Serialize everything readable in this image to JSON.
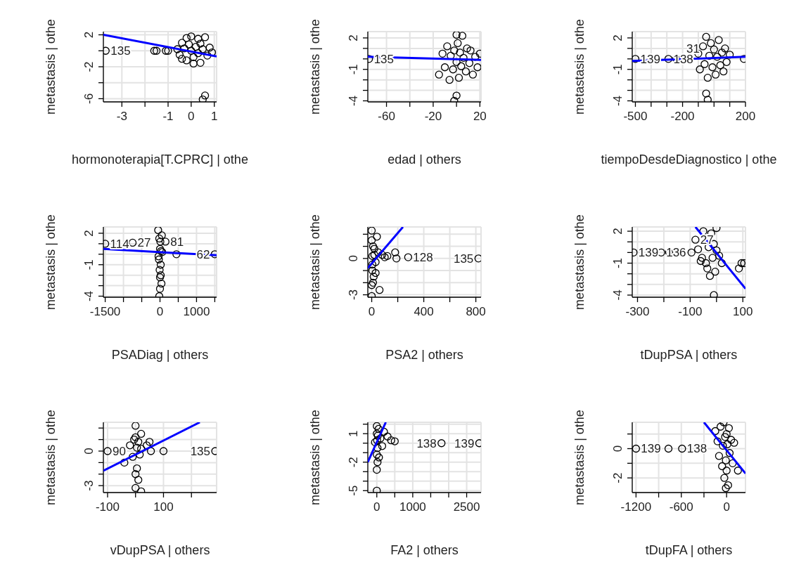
{
  "chart_data": [
    {
      "type": "scatter",
      "xlabel": "hormonoterapia[T.CPRC] | othe",
      "ylabel": "metastasis  | othe",
      "xlim": [
        -3.8,
        1.1
      ],
      "ylim": [
        -6.4,
        2.4
      ],
      "xticks": [
        -3,
        {
          "value": -2,
          "label": null
        },
        -1,
        0,
        1
      ],
      "yticks": [
        2,
        {
          "value": 0,
          "label": null
        },
        -2,
        {
          "value": -4,
          "label": null
        },
        -6
      ],
      "grid": true,
      "series": [
        {
          "color": "#000000",
          "marker": "circle",
          "x": [
            -0.6,
            -0.5,
            -0.4,
            -0.3,
            -0.2,
            -0.1,
            0,
            0,
            0.1,
            0.2,
            0.3,
            0.3,
            0.4,
            0.5,
            0.6,
            0.7,
            0.8,
            0.9,
            -0.2,
            0.1,
            -0.4,
            0.4,
            -3.7,
            -1.6,
            -1.5,
            -1.1,
            -1.0,
            0.5,
            0.6
          ],
          "values": [
            0.2,
            -0.5,
            1.0,
            0.3,
            -1.2,
            0.8,
            1.8,
            0,
            -0.8,
            0.5,
            1.5,
            -0.3,
            -1.5,
            0.2,
            1.7,
            -0.6,
            0.4,
            -0.2,
            1.6,
            -1.6,
            -1.0,
            0.9,
            0,
            0,
            0,
            0,
            0,
            -6.1,
            -5.6
          ]
        },
        {
          "type": "line",
          "color": "#0000ff",
          "x": [
            -3.8,
            1.1
          ],
          "values": [
            2.0,
            -0.7
          ]
        }
      ],
      "annotations": [
        {
          "text": "135",
          "x": -3.7,
          "y": 0
        }
      ]
    },
    {
      "type": "scatter",
      "xlabel": "edad | others",
      "ylabel": "metastasis  | othe",
      "xlim": [
        -76,
        21
      ],
      "ylim": [
        -4.1,
        2.6
      ],
      "xticks": [
        -60,
        {
          "value": -40,
          "label": null
        },
        -20,
        {
          "value": 0,
          "label": null
        },
        20
      ],
      "yticks": [
        2,
        {
          "value": 1,
          "label": null
        },
        {
          "value": 0,
          "label": null
        },
        -1,
        {
          "value": -2,
          "label": null
        },
        {
          "value": -3,
          "label": null
        },
        -4
      ],
      "grid": true,
      "series": [
        {
          "color": "#000000",
          "marker": "circle",
          "x": [
            -75,
            -15,
            -12,
            -10,
            -8,
            -6,
            -5,
            -3,
            -2,
            0,
            0,
            1,
            2,
            3,
            4,
            5,
            6,
            8,
            9,
            11,
            12,
            14,
            16,
            18,
            20,
            0,
            -2
          ],
          "values": [
            0,
            -1.5,
            0.5,
            -0.8,
            1.2,
            -2,
            0.3,
            -1,
            0.8,
            2.3,
            -0.3,
            1.5,
            -1.8,
            0.6,
            -0.7,
            2.2,
            0.1,
            -1.2,
            1.0,
            -0.4,
            0.8,
            -1.5,
            0.2,
            -0.8,
            0.5,
            -3.5,
            -4
          ]
        },
        {
          "type": "line",
          "color": "#0000ff",
          "x": [
            -76,
            21
          ],
          "values": [
            0.2,
            -0.1
          ]
        }
      ],
      "annotations": [
        {
          "text": "135",
          "x": -75,
          "y": 0
        }
      ]
    },
    {
      "type": "scatter",
      "xlabel": "tiempoDesdeDiagnostico | othe",
      "ylabel": "metastasis  | othe",
      "xlim": [
        -520,
        200
      ],
      "ylim": [
        -4.1,
        2.6
      ],
      "xticks": [
        -500,
        {
          "value": -400,
          "label": null
        },
        {
          "value": -300,
          "label": null
        },
        -200,
        {
          "value": -100,
          "label": null
        },
        {
          "value": 0,
          "label": null
        },
        {
          "value": 100,
          "label": null
        },
        200
      ],
      "yticks": [
        2,
        {
          "value": 1,
          "label": null
        },
        {
          "value": 0,
          "label": null
        },
        -1,
        {
          "value": -2,
          "label": null
        },
        {
          "value": -3,
          "label": null
        },
        -4
      ],
      "grid": true,
      "series": [
        {
          "color": "#000000",
          "marker": "circle",
          "x": [
            -500,
            -290,
            -240,
            -100,
            -90,
            -70,
            -60,
            -50,
            -40,
            -30,
            -20,
            -10,
            0,
            10,
            20,
            30,
            40,
            50,
            60,
            70,
            80,
            100,
            190,
            -50,
            -40
          ],
          "values": [
            0,
            0,
            0,
            0.5,
            -1,
            1.2,
            -0.5,
            2.1,
            -1.8,
            0.3,
            1.5,
            -0.8,
            0.9,
            -1.5,
            0.2,
            1.8,
            -0.6,
            0.6,
            -1.2,
            1.0,
            -0.3,
            0.4,
            0,
            -3.3,
            -3.9
          ]
        },
        {
          "type": "line",
          "color": "#0000ff",
          "x": [
            -520,
            200
          ],
          "values": [
            -0.2,
            0.2
          ]
        }
      ],
      "annotations": [
        {
          "text": "139",
          "x": -500,
          "y": 0
        },
        {
          "text": "138",
          "x": -290,
          "y": 0
        },
        {
          "text": "31",
          "x": -60,
          "y": 1
        }
      ]
    },
    {
      "type": "scatter",
      "xlabel": "PSADiag | others",
      "ylabel": "metastasis  | othe",
      "xlim": [
        -1550,
        1550
      ],
      "ylim": [
        -4.1,
        2.6
      ],
      "xticks": [
        -1500,
        {
          "value": -1000,
          "label": null
        },
        {
          "value": -500,
          "label": null
        },
        0,
        {
          "value": 500,
          "label": null
        },
        1000,
        {
          "value": 1500,
          "label": null
        }
      ],
      "yticks": [
        2,
        {
          "value": 1,
          "label": null
        },
        {
          "value": 0,
          "label": null
        },
        -1,
        {
          "value": -2,
          "label": null
        },
        {
          "value": -3,
          "label": null
        },
        -4
      ],
      "grid": true,
      "series": [
        {
          "color": "#000000",
          "marker": "circle",
          "x": [
            -1500,
            -750,
            150,
            -50,
            -30,
            -20,
            -10,
            0,
            0,
            10,
            20,
            30,
            40,
            50,
            0,
            -20,
            60,
            450,
            1500,
            -40,
            20
          ],
          "values": [
            1,
            1.1,
            1.2,
            2.3,
            -0.5,
            1.5,
            -1.5,
            0.5,
            -2.2,
            1.2,
            -1,
            0.3,
            -2.8,
            1.8,
            -3.3,
            -4,
            0.2,
            0,
            0,
            -0.2,
            -2
          ]
        },
        {
          "type": "line",
          "color": "#0000ff",
          "x": [
            -1550,
            1550
          ],
          "values": [
            0.5,
            -0.1
          ]
        }
      ],
      "annotations": [
        {
          "text": "114",
          "x": -1500,
          "y": 1
        },
        {
          "text": "27",
          "x": -750,
          "y": 1.1
        },
        {
          "text": "81",
          "x": 150,
          "y": 1.2
        },
        {
          "text": "62",
          "x": 1500,
          "y": 0
        }
      ]
    },
    {
      "type": "scatter",
      "xlabel": "PSA2 | others",
      "ylabel": "metastasis  | othe",
      "xlim": [
        -30,
        840
      ],
      "ylim": [
        -3.2,
        2.6
      ],
      "xticks": [
        0,
        {
          "value": 200,
          "label": null
        },
        400,
        {
          "value": 600,
          "label": null
        },
        800
      ],
      "yticks": [
        {
          "value": 2,
          "label": null
        },
        {
          "value": 1,
          "label": null
        },
        0,
        {
          "value": -1,
          "label": null
        },
        {
          "value": -2,
          "label": null
        },
        -3
      ],
      "grid": true,
      "series": [
        {
          "color": "#000000",
          "marker": "circle",
          "x": [
            0,
            0,
            5,
            10,
            15,
            20,
            0,
            5,
            10,
            20,
            30,
            40,
            50,
            60,
            80,
            100,
            120,
            180,
            190,
            280,
            820,
            0,
            30,
            5
          ],
          "values": [
            2.3,
            1.5,
            -0.5,
            1.0,
            -1.5,
            0.3,
            -2.2,
            -1,
            -2,
            0.8,
            -0.3,
            1.8,
            0.5,
            -2.6,
            0.3,
            0.1,
            0.2,
            0.5,
            0,
            0.1,
            0,
            -3.1,
            -1.2,
            0.2
          ]
        },
        {
          "type": "line",
          "color": "#0000ff",
          "x": [
            -30,
            240
          ],
          "values": [
            -0.8,
            2.6
          ]
        }
      ],
      "annotations": [
        {
          "text": "128",
          "x": 280,
          "y": 0.1
        },
        {
          "text": "135",
          "x": 820,
          "y": 0
        }
      ]
    },
    {
      "type": "scatter",
      "xlabel": "tDupPSA | others",
      "ylabel": "metastasis  | othe",
      "xlim": [
        -320,
        110
      ],
      "ylim": [
        -4.2,
        2.4
      ],
      "xticks": [
        -300,
        {
          "value": -200,
          "label": null
        },
        -100,
        {
          "value": 0,
          "label": null
        },
        100
      ],
      "yticks": [
        2,
        {
          "value": 1,
          "label": null
        },
        {
          "value": 0,
          "label": null
        },
        -1,
        {
          "value": -2,
          "label": null
        },
        {
          "value": -3,
          "label": null
        },
        -4
      ],
      "grid": true,
      "series": [
        {
          "color": "#000000",
          "marker": "circle",
          "x": [
            -315,
            -210,
            -180,
            -95,
            -80,
            -70,
            -60,
            -50,
            -40,
            -35,
            -30,
            -25,
            -20,
            -15,
            -10,
            -5,
            0,
            0,
            -10,
            10,
            20,
            85,
            95,
            105,
            -55
          ],
          "values": [
            0,
            0,
            0,
            0,
            1.2,
            0.3,
            -0.8,
            2,
            -1.0,
            -1.5,
            0.5,
            -2.2,
            1.8,
            -0.5,
            0.8,
            -1.8,
            0.2,
            2.3,
            -4,
            -0.3,
            -1,
            -1.5,
            -1,
            -1,
            -0.5
          ]
        },
        {
          "type": "line",
          "color": "#0000ff",
          "x": [
            -80,
            110
          ],
          "values": [
            2.4,
            -3.4
          ]
        }
      ],
      "annotations": [
        {
          "text": "139",
          "x": -315,
          "y": 0
        },
        {
          "text": "136",
          "x": -210,
          "y": 0
        },
        {
          "text": "27",
          "x": -80,
          "y": 1.2
        }
      ]
    },
    {
      "type": "scatter",
      "xlabel": "vDupPSA | others",
      "ylabel": "metastasis  | othe",
      "xlim": [
        -115,
        290
      ],
      "ylim": [
        -3.6,
        2.5
      ],
      "xticks": [
        -100,
        {
          "value": 0,
          "label": null
        },
        100,
        {
          "value": 200,
          "label": null
        }
      ],
      "yticks": [
        {
          "value": 2,
          "label": null
        },
        {
          "value": 1,
          "label": null
        },
        0,
        {
          "value": -1,
          "label": null
        },
        {
          "value": -2,
          "label": null
        },
        -3
      ],
      "grid": true,
      "series": [
        {
          "color": "#000000",
          "marker": "circle",
          "x": [
            -100,
            -40,
            -20,
            -10,
            0,
            0,
            0,
            5,
            5,
            10,
            10,
            15,
            20,
            20,
            40,
            50,
            55,
            100,
            285,
            0,
            20,
            -5
          ],
          "values": [
            0,
            -1,
            0.5,
            -0.5,
            2.2,
            1.2,
            -2,
            0.3,
            -1.5,
            0.8,
            -2.5,
            -0.3,
            1.5,
            0.2,
            0.5,
            0.8,
            0,
            0,
            0,
            -3.2,
            -3.5,
            1.0
          ]
        },
        {
          "type": "line",
          "color": "#0000ff",
          "x": [
            -115,
            230
          ],
          "values": [
            -1.7,
            2.5
          ]
        }
      ],
      "annotations": [
        {
          "text": "90",
          "x": -100,
          "y": 0
        },
        {
          "text": "135",
          "x": 285,
          "y": 0
        }
      ]
    },
    {
      "type": "scatter",
      "xlabel": "FA2 | others",
      "ylabel": "metastasis  | othe",
      "xlim": [
        -250,
        2900
      ],
      "ylim": [
        -5.2,
        2.2
      ],
      "xticks": [
        0,
        {
          "value": 500,
          "label": null
        },
        1000,
        {
          "value": 1500,
          "label": null
        },
        {
          "value": 2000,
          "label": null
        },
        2500
      ],
      "yticks": [
        {
          "value": 2,
          "label": null
        },
        1,
        {
          "value": 0,
          "label": null
        },
        {
          "value": -1,
          "label": null
        },
        -2,
        {
          "value": -3,
          "label": null
        },
        {
          "value": -4,
          "label": null
        },
        -5
      ],
      "grid": true,
      "series": [
        {
          "color": "#000000",
          "marker": "circle",
          "x": [
            0,
            0,
            10,
            20,
            0,
            30,
            50,
            0,
            20,
            100,
            150,
            200,
            300,
            400,
            500,
            1800,
            2850,
            0,
            60,
            -50
          ],
          "values": [
            1.8,
            1,
            0.3,
            -0.5,
            -1.2,
            0.8,
            1.5,
            -2.8,
            -2,
            0.5,
            -0.3,
            1.2,
            0.7,
            0.3,
            0.2,
            0,
            0,
            -5,
            -1.5,
            0.1
          ]
        },
        {
          "type": "line",
          "color": "#0000ff",
          "x": [
            -250,
            250
          ],
          "values": [
            -2,
            2.2
          ]
        }
      ],
      "annotations": [
        {
          "text": "138",
          "x": 1800,
          "y": 0
        },
        {
          "text": "139",
          "x": 2850,
          "y": 0
        }
      ]
    },
    {
      "type": "scatter",
      "xlabel": "tDupFA | others",
      "ylabel": "metastasis  | othe",
      "xlim": [
        -1250,
        250
      ],
      "ylim": [
        -3,
        1.8
      ],
      "xticks": [
        -1200,
        {
          "value": -900,
          "label": null
        },
        -600,
        {
          "value": -300,
          "label": null
        },
        0
      ],
      "yticks": [
        {
          "value": 1,
          "label": null
        },
        0,
        {
          "value": -1,
          "label": null
        },
        -2
      ],
      "grid": true,
      "series": [
        {
          "color": "#000000",
          "marker": "circle",
          "x": [
            -1200,
            -770,
            -590,
            -150,
            -120,
            -100,
            -80,
            -60,
            -50,
            -40,
            -30,
            -20,
            -10,
            0,
            0,
            10,
            20,
            30,
            40,
            60,
            80,
            100,
            150,
            -10
          ],
          "values": [
            0,
            0,
            0,
            1.2,
            0.5,
            -0.5,
            1.5,
            -1.2,
            0.2,
            1.8,
            -2,
            0.8,
            -0.8,
            1.0,
            -1.5,
            0.3,
            -2.5,
            1.4,
            -0.3,
            0.6,
            -1.0,
            0.4,
            -1.5,
            -2.7
          ]
        },
        {
          "type": "line",
          "color": "#0000ff",
          "x": [
            -300,
            250
          ],
          "values": [
            1.8,
            -1.7
          ]
        }
      ],
      "annotations": [
        {
          "text": "139",
          "x": -1200,
          "y": 0
        },
        {
          "text": "138",
          "x": -590,
          "y": 0
        }
      ]
    }
  ]
}
